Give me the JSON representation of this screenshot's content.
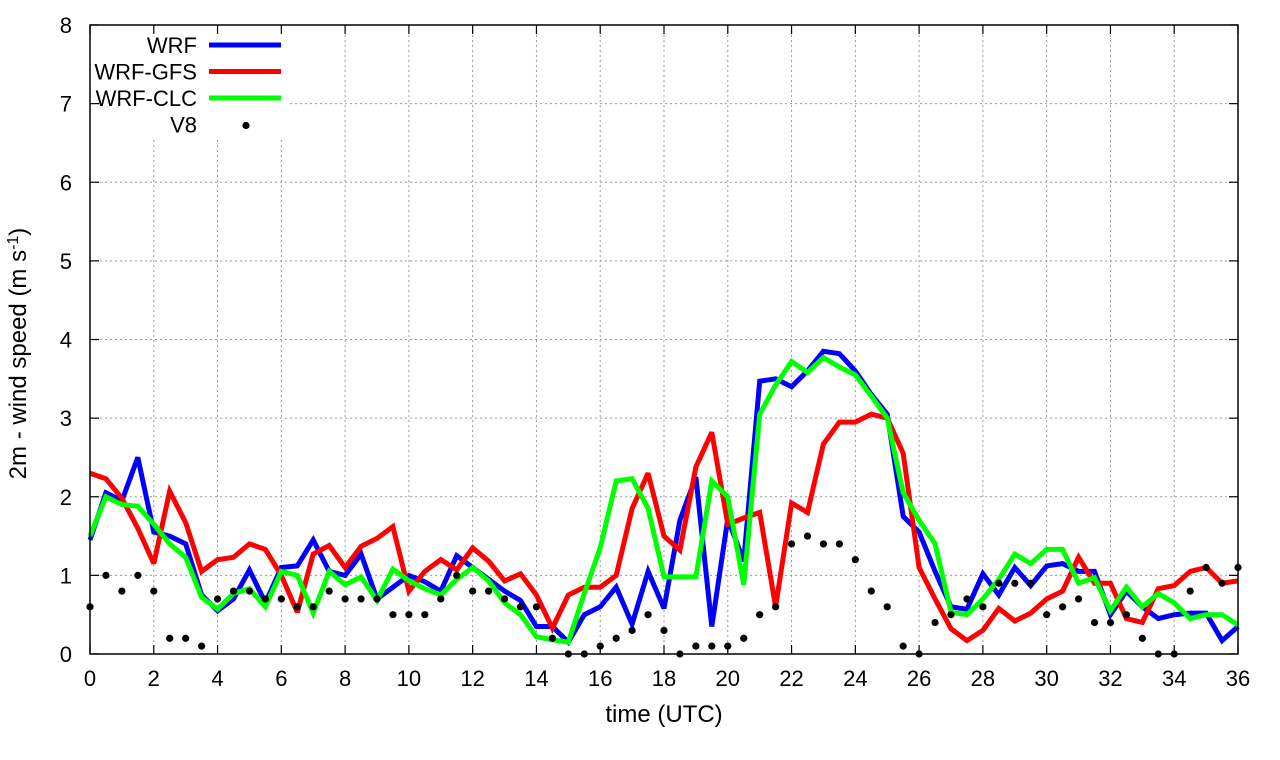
{
  "chart_data": {
    "type": "line",
    "xlabel": "time (UTC)",
    "ylabel": "2m - wind speed  (m s",
    "ylabel_sup": "-1",
    "ylabel_suffix": ")",
    "xlim": [
      0,
      36
    ],
    "ylim": [
      0,
      8
    ],
    "x_ticks": [
      0,
      2,
      4,
      6,
      8,
      10,
      12,
      14,
      16,
      18,
      20,
      22,
      24,
      26,
      28,
      30,
      32,
      34,
      36
    ],
    "y_ticks": [
      0,
      1,
      2,
      3,
      4,
      5,
      6,
      7,
      8
    ],
    "grid": true,
    "legend_position": "top-left",
    "series": [
      {
        "name": "WRF",
        "style": "line",
        "color": "#0000ff",
        "x": [
          0,
          0.5,
          1,
          1.5,
          2,
          2.5,
          3,
          3.5,
          4,
          4.5,
          5,
          5.5,
          6,
          6.5,
          7,
          7.5,
          8,
          8.5,
          9,
          9.5,
          10,
          10.5,
          11,
          11.5,
          12,
          12.5,
          13,
          13.5,
          14,
          14.5,
          15,
          15.5,
          16,
          16.5,
          17,
          17.5,
          18,
          18.5,
          19,
          19.5,
          20,
          20.5,
          21,
          21.5,
          22,
          22.5,
          23,
          23.5,
          24,
          24.5,
          25,
          25.5,
          26,
          26.5,
          27,
          27.5,
          28,
          28.5,
          29,
          29.5,
          30,
          30.5,
          31,
          31.5,
          32,
          32.5,
          33,
          33.5,
          34,
          34.5,
          35,
          35.5,
          36
        ],
        "y": [
          1.45,
          2.05,
          1.95,
          2.5,
          1.55,
          1.5,
          1.4,
          0.75,
          0.55,
          0.7,
          1.07,
          0.65,
          1.1,
          1.12,
          1.45,
          1.05,
          1.0,
          1.27,
          0.7,
          0.85,
          1.0,
          0.92,
          0.8,
          1.25,
          1.1,
          0.95,
          0.8,
          0.68,
          0.35,
          0.35,
          0.15,
          0.5,
          0.6,
          0.85,
          0.38,
          1.05,
          0.58,
          1.7,
          2.25,
          0.35,
          1.72,
          1.18,
          3.47,
          3.5,
          3.4,
          3.6,
          3.85,
          3.82,
          3.6,
          3.3,
          3.05,
          1.75,
          1.55,
          1.05,
          0.6,
          0.57,
          1.02,
          0.75,
          1.1,
          0.87,
          1.12,
          1.15,
          1.05,
          1.05,
          0.5,
          0.8,
          0.6,
          0.45,
          0.5,
          0.52,
          0.52,
          0.17,
          0.35
        ]
      },
      {
        "name": "WRF-GFS",
        "style": "line",
        "color": "#ff0000",
        "x": [
          0,
          0.5,
          1,
          1.5,
          2,
          2.5,
          3,
          3.5,
          4,
          4.5,
          5,
          5.5,
          6,
          6.5,
          7,
          7.5,
          8,
          8.5,
          9,
          9.5,
          10,
          10.5,
          11,
          11.5,
          12,
          12.5,
          13,
          13.5,
          14,
          14.5,
          15,
          15.5,
          16,
          16.5,
          17,
          17.5,
          18,
          18.5,
          19,
          19.5,
          20,
          20.5,
          21,
          21.5,
          22,
          22.5,
          23,
          23.5,
          24,
          24.5,
          25,
          25.5,
          26,
          26.5,
          27,
          27.5,
          28,
          28.5,
          29,
          29.5,
          30,
          30.5,
          31,
          31.5,
          32,
          32.5,
          33,
          33.5,
          34,
          34.5,
          35,
          35.5,
          36
        ],
        "y": [
          2.3,
          2.23,
          1.98,
          1.6,
          1.15,
          2.07,
          1.67,
          1.05,
          1.2,
          1.23,
          1.4,
          1.33,
          1.0,
          0.53,
          1.27,
          1.38,
          1.1,
          1.37,
          1.47,
          1.62,
          0.8,
          1.05,
          1.2,
          1.07,
          1.35,
          1.18,
          0.93,
          1.02,
          0.75,
          0.33,
          0.75,
          0.85,
          0.85,
          1.0,
          1.85,
          2.3,
          1.5,
          1.32,
          2.38,
          2.82,
          1.65,
          1.73,
          1.8,
          0.6,
          1.92,
          1.8,
          2.67,
          2.95,
          2.95,
          3.05,
          3.0,
          2.55,
          1.1,
          0.7,
          0.32,
          0.17,
          0.3,
          0.58,
          0.42,
          0.52,
          0.7,
          0.8,
          1.23,
          0.9,
          0.9,
          0.45,
          0.4,
          0.83,
          0.87,
          1.05,
          1.1,
          0.9,
          0.93
        ]
      },
      {
        "name": "WRF-CLC",
        "style": "line",
        "color": "#00ff00",
        "x": [
          0,
          0.5,
          1,
          1.5,
          2,
          2.5,
          3,
          3.5,
          4,
          4.5,
          5,
          5.5,
          6,
          6.5,
          7,
          7.5,
          8,
          8.5,
          9,
          9.5,
          10,
          10.5,
          11,
          11.5,
          12,
          12.5,
          13,
          13.5,
          14,
          14.5,
          15,
          15.5,
          16,
          16.5,
          17,
          17.5,
          18,
          18.5,
          19,
          19.5,
          20,
          20.5,
          21,
          21.5,
          22,
          22.5,
          23,
          23.5,
          24,
          24.5,
          25,
          25.5,
          26,
          26.5,
          27,
          27.5,
          28,
          28.5,
          29,
          29.5,
          30,
          30.5,
          31,
          31.5,
          32,
          32.5,
          33,
          33.5,
          34,
          34.5,
          35,
          35.5,
          36
        ],
        "y": [
          1.5,
          2.0,
          1.9,
          1.88,
          1.65,
          1.4,
          1.23,
          0.72,
          0.57,
          0.77,
          0.83,
          0.6,
          1.05,
          1.0,
          0.52,
          1.05,
          0.88,
          0.98,
          0.68,
          1.08,
          0.93,
          0.83,
          0.75,
          0.95,
          1.1,
          0.93,
          0.65,
          0.5,
          0.22,
          0.18,
          0.15,
          0.77,
          1.35,
          2.2,
          2.23,
          1.85,
          0.98,
          0.98,
          0.98,
          2.2,
          2.0,
          0.88,
          3.05,
          3.42,
          3.72,
          3.58,
          3.77,
          3.65,
          3.55,
          3.28,
          3.0,
          2.05,
          1.7,
          1.4,
          0.53,
          0.5,
          0.7,
          0.95,
          1.27,
          1.15,
          1.33,
          1.33,
          0.9,
          0.97,
          0.55,
          0.85,
          0.6,
          0.77,
          0.65,
          0.45,
          0.5,
          0.5,
          0.37
        ]
      },
      {
        "name": "V8",
        "style": "points",
        "color": "#000000",
        "x": [
          0,
          0.5,
          1,
          1.5,
          2,
          2.5,
          3,
          3.5,
          4,
          4.5,
          5,
          5.5,
          6,
          6.5,
          7,
          7.5,
          8,
          8.5,
          9,
          9.5,
          10,
          10.5,
          11,
          11.5,
          12,
          12.5,
          13,
          13.5,
          14,
          14.5,
          15,
          15.5,
          16,
          16.5,
          17,
          17.5,
          18,
          18.5,
          19,
          19.5,
          20,
          20.5,
          21,
          21.5,
          22,
          22.5,
          23,
          23.5,
          24,
          24.5,
          25,
          25.5,
          26,
          26.5,
          27,
          27.5,
          28,
          28.5,
          29,
          29.5,
          30,
          30.5,
          31,
          31.5,
          32,
          32.5,
          33,
          33.5,
          34,
          34.5,
          35,
          35.5,
          36
        ],
        "y": [
          0.6,
          1.0,
          0.8,
          1.0,
          0.8,
          0.2,
          0.2,
          0.1,
          0.7,
          0.8,
          0.8,
          0.7,
          0.7,
          0.6,
          0.6,
          0.8,
          0.7,
          0.7,
          0.7,
          0.5,
          0.5,
          0.5,
          0.7,
          1.0,
          0.8,
          0.8,
          0.7,
          0.6,
          0.6,
          0.2,
          0.0,
          0.0,
          0.1,
          0.2,
          0.3,
          0.5,
          0.3,
          0.0,
          0.1,
          0.1,
          0.1,
          0.2,
          0.5,
          0.6,
          1.4,
          1.5,
          1.4,
          1.4,
          1.2,
          0.8,
          0.6,
          0.1,
          0.0,
          0.4,
          0.5,
          0.7,
          0.6,
          0.9,
          0.9,
          0.9,
          0.5,
          0.6,
          0.7,
          0.4,
          0.4,
          0.5,
          0.2,
          0.0,
          0.0,
          0.8,
          1.1,
          0.9,
          1.1
        ]
      }
    ]
  }
}
